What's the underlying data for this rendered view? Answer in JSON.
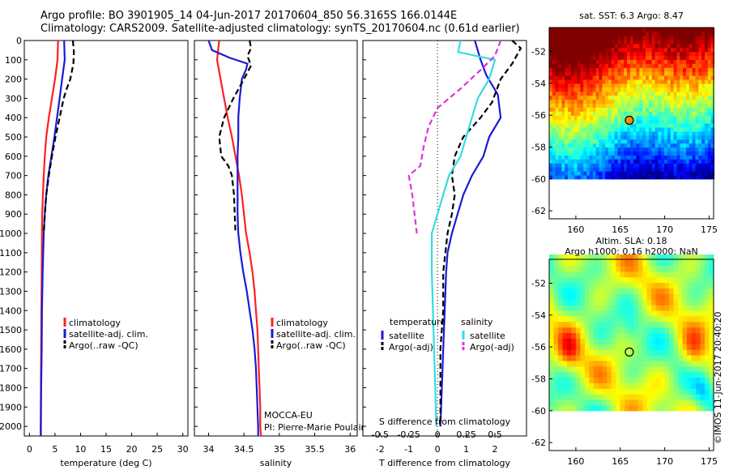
{
  "header": {
    "line1": "Argo profile: BO 3901905_14 04-Jun-2017 20170604_850 56.3165S 166.0144E",
    "line2": "Climatology: CARS2009. Satellite-adjusted climatology: synTS_20170604.nc (0.61d earlier)"
  },
  "stamp": "©IMOS 11-Jun-2017 20:40:20",
  "colors": {
    "climatology": "#ff2020",
    "satellite": "#1a1ad6",
    "argo": "#000000",
    "sat_salinity": "#33dde0",
    "argo_salinity": "#e030e0"
  },
  "chart_data": [
    {
      "type": "line",
      "panel": "temperature",
      "xlabel": "temperature (deg C)",
      "xlim": [
        -1,
        31
      ],
      "ylim": [
        0,
        2050
      ],
      "xticks": [
        "0",
        "5",
        "10",
        "15",
        "20",
        "25",
        "30"
      ],
      "yticks": [
        "0",
        "100",
        "200",
        "300",
        "400",
        "500",
        "600",
        "700",
        "800",
        "900",
        "1000",
        "1100",
        "1200",
        "1300",
        "1400",
        "1500",
        "1600",
        "1700",
        "1800",
        "1900",
        "2000"
      ],
      "legend": [
        "climatology",
        "satellite-adj. clim.",
        "Argo(..raw -QC)"
      ],
      "series": [
        {
          "name": "climatology",
          "style": "solid",
          "color": "#ff2020",
          "points": [
            [
              5.6,
              0
            ],
            [
              5.5,
              100
            ],
            [
              5.0,
              200
            ],
            [
              4.4,
              300
            ],
            [
              3.8,
              400
            ],
            [
              3.3,
              500
            ],
            [
              3.0,
              600
            ],
            [
              2.8,
              700
            ],
            [
              2.65,
              800
            ],
            [
              2.5,
              900
            ],
            [
              2.45,
              1000
            ],
            [
              2.4,
              1200
            ],
            [
              2.35,
              1400
            ],
            [
              2.3,
              1600
            ],
            [
              2.25,
              1800
            ],
            [
              2.2,
              2000
            ],
            [
              2.2,
              2050
            ]
          ]
        },
        {
          "name": "satellite-adj. clim.",
          "style": "solid",
          "color": "#1a1ad6",
          "points": [
            [
              6.8,
              0
            ],
            [
              6.9,
              100
            ],
            [
              6.4,
              200
            ],
            [
              5.9,
              300
            ],
            [
              5.4,
              400
            ],
            [
              4.9,
              500
            ],
            [
              4.3,
              600
            ],
            [
              3.7,
              700
            ],
            [
              3.3,
              800
            ],
            [
              3.0,
              900
            ],
            [
              2.8,
              1000
            ],
            [
              2.6,
              1200
            ],
            [
              2.45,
              1400
            ],
            [
              2.4,
              1600
            ],
            [
              2.3,
              1800
            ],
            [
              2.25,
              2000
            ],
            [
              2.25,
              2050
            ]
          ]
        },
        {
          "name": "Argo(..raw -QC)",
          "style": "dashed",
          "color": "#000000",
          "points": [
            [
              8.5,
              0
            ],
            [
              8.7,
              60
            ],
            [
              8.6,
              120
            ],
            [
              8.0,
              200
            ],
            [
              7.3,
              250
            ],
            [
              6.7,
              300
            ],
            [
              5.9,
              400
            ],
            [
              5.1,
              500
            ],
            [
              4.4,
              600
            ],
            [
              3.8,
              700
            ],
            [
              3.3,
              800
            ],
            [
              3.0,
              900
            ],
            [
              2.8,
              1000
            ]
          ]
        }
      ]
    },
    {
      "type": "line",
      "panel": "salinity",
      "xlabel": "salinity",
      "xlim": [
        33.8,
        36.1
      ],
      "ylim": [
        0,
        2050
      ],
      "xticks": [
        "34",
        "34.5",
        "35",
        "35.5",
        "36"
      ],
      "legend": [
        "climatology",
        "satellite-adj. clim.",
        "Argo(..raw -QC)"
      ],
      "annotation": [
        "MOCCA-EU",
        "PI: Pierre-Marie Poulain"
      ],
      "series": [
        {
          "name": "climatology",
          "style": "solid",
          "color": "#ff2020",
          "points": [
            [
              34.15,
              0
            ],
            [
              34.12,
              100
            ],
            [
              34.17,
              200
            ],
            [
              34.22,
              300
            ],
            [
              34.27,
              400
            ],
            [
              34.33,
              500
            ],
            [
              34.38,
              600
            ],
            [
              34.43,
              700
            ],
            [
              34.47,
              800
            ],
            [
              34.5,
              900
            ],
            [
              34.53,
              1000
            ],
            [
              34.58,
              1100
            ],
            [
              34.62,
              1200
            ],
            [
              34.65,
              1300
            ],
            [
              34.67,
              1400
            ],
            [
              34.69,
              1500
            ],
            [
              34.7,
              1600
            ],
            [
              34.71,
              1700
            ],
            [
              34.72,
              1800
            ],
            [
              34.73,
              1900
            ],
            [
              34.73,
              2000
            ],
            [
              34.74,
              2050
            ]
          ]
        },
        {
          "name": "satellite-adj. clim.",
          "style": "solid",
          "color": "#1a1ad6",
          "points": [
            [
              34.0,
              0
            ],
            [
              34.05,
              50
            ],
            [
              34.3,
              90
            ],
            [
              34.55,
              120
            ],
            [
              34.53,
              150
            ],
            [
              34.47,
              200
            ],
            [
              34.44,
              300
            ],
            [
              34.42,
              400
            ],
            [
              34.42,
              500
            ],
            [
              34.41,
              600
            ],
            [
              34.41,
              700
            ],
            [
              34.41,
              800
            ],
            [
              34.41,
              900
            ],
            [
              34.42,
              1000
            ],
            [
              34.45,
              1100
            ],
            [
              34.49,
              1200
            ],
            [
              34.54,
              1300
            ],
            [
              34.58,
              1400
            ],
            [
              34.62,
              1500
            ],
            [
              34.65,
              1600
            ],
            [
              34.67,
              1700
            ],
            [
              34.68,
              1800
            ],
            [
              34.69,
              1900
            ],
            [
              34.7,
              2000
            ],
            [
              34.7,
              2050
            ]
          ]
        },
        {
          "name": "Argo(..raw -QC)",
          "style": "dashed",
          "color": "#000000",
          "points": [
            [
              34.58,
              0
            ],
            [
              34.6,
              40
            ],
            [
              34.55,
              80
            ],
            [
              34.6,
              130
            ],
            [
              34.5,
              200
            ],
            [
              34.35,
              300
            ],
            [
              34.22,
              400
            ],
            [
              34.15,
              500
            ],
            [
              34.18,
              600
            ],
            [
              34.28,
              650
            ],
            [
              34.33,
              700
            ],
            [
              34.36,
              800
            ],
            [
              34.37,
              900
            ],
            [
              34.38,
              1000
            ]
          ]
        }
      ]
    },
    {
      "type": "line",
      "panel": "difference",
      "xlabel": "T difference from climatology",
      "xlabel_top": "S difference from climatology",
      "xlim": [
        -2.6,
        3.1
      ],
      "ylim": [
        0,
        2050
      ],
      "xticks": [
        "-2",
        "-1",
        "0",
        "1",
        "2"
      ],
      "xticks_top": [
        "-0.5",
        "-0.25",
        "0",
        "0.25",
        "0.5"
      ],
      "legend": {
        "temperature": [
          "satellite",
          "Argo(-adj)"
        ],
        "salinity": [
          "satellite",
          "Argo(-adj)"
        ]
      },
      "legend_titles": {
        "temperature": "temperature",
        "salinity": "salinity"
      },
      "series": [
        {
          "name": "T satellite",
          "style": "solid",
          "color": "#1a1ad6",
          "points": [
            [
              1.3,
              0
            ],
            [
              1.5,
              100
            ],
            [
              1.7,
              180
            ],
            [
              2.1,
              280
            ],
            [
              2.2,
              400
            ],
            [
              1.8,
              500
            ],
            [
              1.6,
              600
            ],
            [
              1.2,
              700
            ],
            [
              0.9,
              800
            ],
            [
              0.7,
              900
            ],
            [
              0.5,
              1000
            ],
            [
              0.35,
              1100
            ],
            [
              0.3,
              1200
            ],
            [
              0.25,
              1400
            ],
            [
              0.2,
              1600
            ],
            [
              0.15,
              1800
            ],
            [
              0.1,
              2000
            ]
          ]
        },
        {
          "name": "T Argo(-adj)",
          "style": "dashed",
          "color": "#000000",
          "points": [
            [
              2.6,
              0
            ],
            [
              2.9,
              40
            ],
            [
              2.6,
              120
            ],
            [
              2.2,
              200
            ],
            [
              1.9,
              320
            ],
            [
              1.5,
              400
            ],
            [
              0.9,
              500
            ],
            [
              0.6,
              600
            ],
            [
              0.5,
              700
            ],
            [
              0.6,
              800
            ],
            [
              0.5,
              900
            ],
            [
              0.35,
              1000
            ],
            [
              0.2,
              1200
            ],
            [
              0.2,
              1400
            ],
            [
              0.1,
              1600
            ],
            [
              0.1,
              1800
            ],
            [
              0.1,
              2000
            ]
          ]
        },
        {
          "name": "S satellite",
          "style": "solid",
          "color": "#33dde0",
          "points": [
            [
              0.2,
              0
            ],
            [
              0.18,
              60
            ],
            [
              0.5,
              100
            ],
            [
              0.45,
              200
            ],
            [
              0.35,
              300
            ],
            [
              0.3,
              400
            ],
            [
              0.25,
              500
            ],
            [
              0.2,
              600
            ],
            [
              0.1,
              700
            ],
            [
              0.0,
              900
            ],
            [
              -0.05,
              1000
            ],
            [
              -0.05,
              1200
            ],
            [
              -0.04,
              1400
            ],
            [
              -0.03,
              1600
            ],
            [
              -0.02,
              1800
            ],
            [
              -0.01,
              2000
            ]
          ]
        },
        {
          "name": "S Argo(-adj)",
          "style": "dashed",
          "color": "#e030e0",
          "points": [
            [
              0.55,
              0
            ],
            [
              0.5,
              80
            ],
            [
              0.38,
              150
            ],
            [
              0.2,
              250
            ],
            [
              0.0,
              350
            ],
            [
              -0.08,
              450
            ],
            [
              -0.12,
              550
            ],
            [
              -0.15,
              650
            ],
            [
              -0.25,
              700
            ],
            [
              -0.22,
              800
            ],
            [
              -0.2,
              900
            ],
            [
              -0.18,
              1000
            ]
          ]
        }
      ]
    }
  ],
  "maps": [
    {
      "title": [
        "sat. SST: 6.3 Argo: 8.47"
      ],
      "kind": "sst",
      "xlim": [
        157,
        175.5
      ],
      "ylim": [
        -62.5,
        -50.5
      ],
      "data_ylim": [
        -60,
        -50.5
      ],
      "xticks": [
        "160",
        "165",
        "170",
        "175"
      ],
      "yticks": [
        "-52",
        "-54",
        "-56",
        "-58",
        "-60",
        "-62"
      ],
      "marker": [
        166.0144,
        -56.3165
      ]
    },
    {
      "title": [
        "Altim. SLA: 0.18",
        "Argo h1000: 0.16 h2000: NaN"
      ],
      "kind": "sla",
      "xlim": [
        157,
        175.5
      ],
      "ylim": [
        -62.5,
        -50.5
      ],
      "data_ylim": [
        -60,
        -50.5
      ],
      "xticks": [
        "160",
        "165",
        "170",
        "175"
      ],
      "yticks": [
        "-52",
        "-54",
        "-56",
        "-58",
        "-60",
        "-62"
      ],
      "marker": [
        166.0144,
        -56.3165
      ]
    }
  ]
}
